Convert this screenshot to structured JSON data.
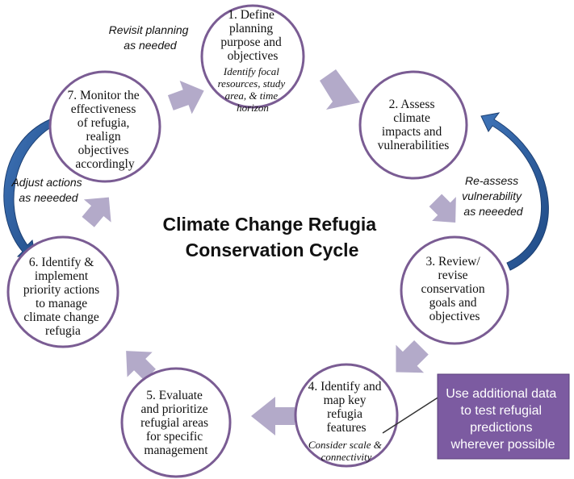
{
  "title": {
    "line1": "Climate Change Refugia",
    "line2": "Conservation Cycle"
  },
  "steps": [
    {
      "id": 1,
      "lines": [
        "1. Define",
        "planning",
        "purpose and",
        "objectives"
      ],
      "note": [
        "Identify  focal",
        "resources, study",
        "area, & time",
        "horizon"
      ]
    },
    {
      "id": 2,
      "lines": [
        "2. Assess",
        "climate",
        "impacts and",
        "vulnerabilities"
      ],
      "note": []
    },
    {
      "id": 3,
      "lines": [
        "3. Review/",
        "revise",
        "conservation",
        "goals and",
        "objectives"
      ],
      "note": []
    },
    {
      "id": 4,
      "lines": [
        "4. Identify and",
        "map key",
        "refugia",
        "features"
      ],
      "note": [
        "Consider scale &",
        "connectivity"
      ]
    },
    {
      "id": 5,
      "lines": [
        "5. Evaluate",
        "and prioritize",
        "refugial areas",
        "for specific",
        "management"
      ],
      "note": []
    },
    {
      "id": 6,
      "lines": [
        "6. Identify &",
        "implement",
        "priority actions",
        "to manage",
        "climate change",
        "refugia"
      ],
      "note": []
    },
    {
      "id": 7,
      "lines": [
        "7. Monitor the",
        "effectiveness",
        "of refugia,",
        "realign",
        "objectives",
        "accordingly"
      ],
      "note": []
    }
  ],
  "loops": {
    "revisit": [
      "Revisit planning",
      "as needed"
    ],
    "reassess": [
      "Re-assess",
      "vulnerability",
      "as neeeded"
    ],
    "adjust": [
      "Adjust actions",
      "as neeeded"
    ]
  },
  "callout": {
    "lines": [
      "Use additional data",
      "to test refugial",
      "predictions",
      "wherever possible"
    ]
  },
  "colors": {
    "circle_stroke": "#7a5c93",
    "chevron": "#b3aac9",
    "loop_arrow": "#2e5b9a",
    "callout_fill": "#7c5ba1"
  }
}
